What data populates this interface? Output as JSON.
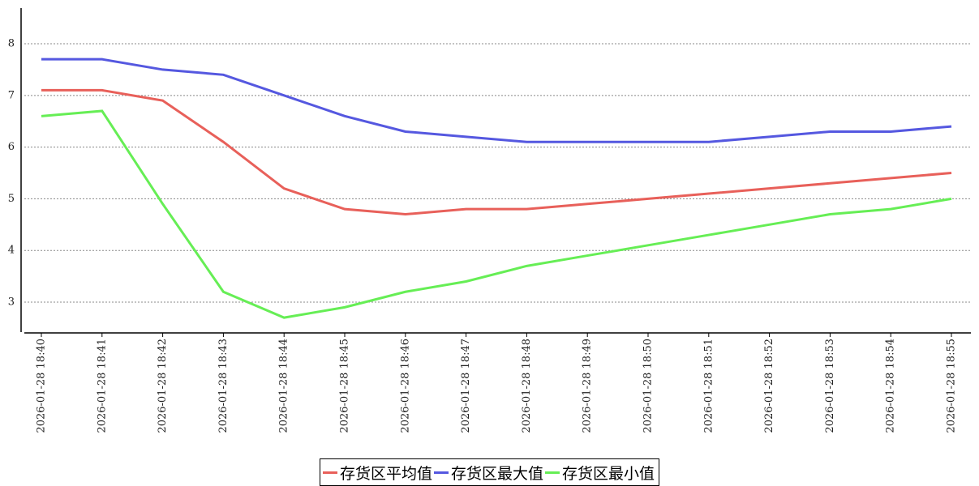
{
  "chart_data": {
    "type": "line",
    "categories": [
      "2026-01-28 18:40",
      "2026-01-28 18:41",
      "2026-01-28 18:42",
      "2026-01-28 18:43",
      "2026-01-28 18:44",
      "2026-01-28 18:45",
      "2026-01-28 18:46",
      "2026-01-28 18:47",
      "2026-01-28 18:48",
      "2026-01-28 18:49",
      "2026-01-28 18:50",
      "2026-01-28 18:51",
      "2026-01-28 18:52",
      "2026-01-28 18:53",
      "2026-01-28 18:54",
      "2026-01-28 18:55"
    ],
    "series": [
      {
        "name": "存货区平均值",
        "color": "#e8605a",
        "values": [
          7.1,
          7.1,
          6.9,
          6.1,
          5.2,
          4.8,
          4.7,
          4.8,
          4.8,
          4.9,
          5.0,
          5.1,
          5.2,
          5.3,
          5.4,
          5.5
        ]
      },
      {
        "name": "存货区最大值",
        "color": "#5558e0",
        "values": [
          7.7,
          7.7,
          7.5,
          7.4,
          7.0,
          6.6,
          6.3,
          6.2,
          6.1,
          6.1,
          6.1,
          6.1,
          6.2,
          6.3,
          6.3,
          6.4
        ]
      },
      {
        "name": "存货区最小值",
        "color": "#66ee55",
        "values": [
          6.6,
          6.7,
          4.9,
          3.2,
          2.7,
          2.9,
          3.2,
          3.4,
          3.7,
          3.9,
          4.1,
          4.3,
          4.5,
          4.7,
          4.8,
          5.0
        ]
      }
    ],
    "ylim": [
      2.42,
      8.69
    ],
    "yticks": [
      3,
      4,
      5,
      6,
      7,
      8
    ],
    "grid": true,
    "legend": "bottom"
  }
}
